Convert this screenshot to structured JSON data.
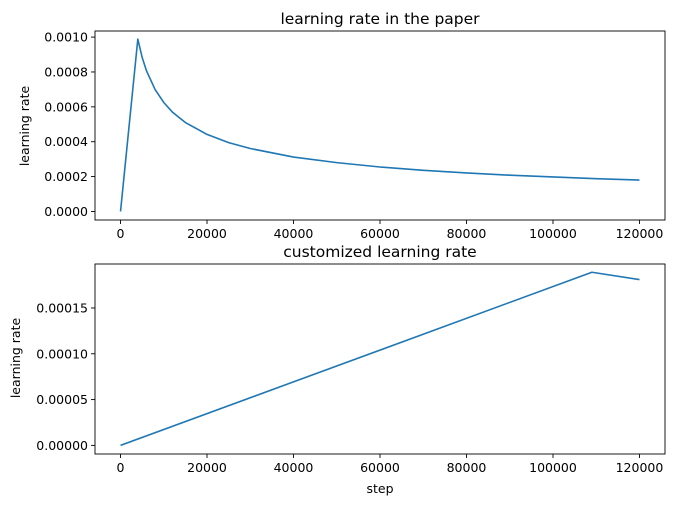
{
  "chart_data": [
    {
      "type": "line",
      "title": "learning rate in the paper",
      "xlabel": "",
      "ylabel": "learning rate",
      "xlim": [
        -5900,
        125900
      ],
      "ylim": [
        -4.9e-05,
        0.001035
      ],
      "xticks": [
        0,
        20000,
        40000,
        60000,
        80000,
        100000,
        120000
      ],
      "xtick_labels": [
        "0",
        "20000",
        "40000",
        "60000",
        "80000",
        "100000",
        "120000"
      ],
      "yticks": [
        0.0,
        0.0002,
        0.0004,
        0.0006,
        0.0008,
        0.001
      ],
      "ytick_labels": [
        "0.0000",
        "0.0002",
        "0.0004",
        "0.0006",
        "0.0008",
        "0.0010"
      ],
      "grid": false,
      "legend": "none",
      "color": "#1f77b4",
      "series": [
        {
          "x": [
            0,
            4000,
            5000,
            6000,
            8000,
            10000,
            12000,
            15000,
            20000,
            25000,
            30000,
            40000,
            50000,
            60000,
            70000,
            80000,
            90000,
            100000,
            110000,
            120000
          ],
          "y": [
            0,
            0.000988,
            0.000884,
            0.000807,
            0.000699,
            0.000625,
            0.00057,
            0.00051,
            0.000442,
            0.000395,
            0.000361,
            0.000312,
            0.00028,
            0.000255,
            0.000236,
            0.000221,
            0.000208,
            0.000198,
            0.000188,
            0.00018
          ]
        }
      ]
    },
    {
      "type": "line",
      "title": "customized learning rate",
      "xlabel": "step",
      "ylabel": "learning rate",
      "xlim": [
        -5900,
        125900
      ],
      "ylim": [
        -9.4e-06,
        0.000198
      ],
      "xticks": [
        0,
        20000,
        40000,
        60000,
        80000,
        100000,
        120000
      ],
      "xtick_labels": [
        "0",
        "20000",
        "40000",
        "60000",
        "80000",
        "100000",
        "120000"
      ],
      "yticks": [
        0.0,
        5e-05,
        0.0001,
        0.00015
      ],
      "ytick_labels": [
        "0.00000",
        "0.00005",
        "0.00010",
        "0.00015"
      ],
      "grid": false,
      "legend": "none",
      "color": "#1f77b4",
      "series": [
        {
          "x": [
            0,
            109000,
            120000
          ],
          "y": [
            0,
            0.000189,
            0.000181
          ]
        }
      ]
    }
  ]
}
